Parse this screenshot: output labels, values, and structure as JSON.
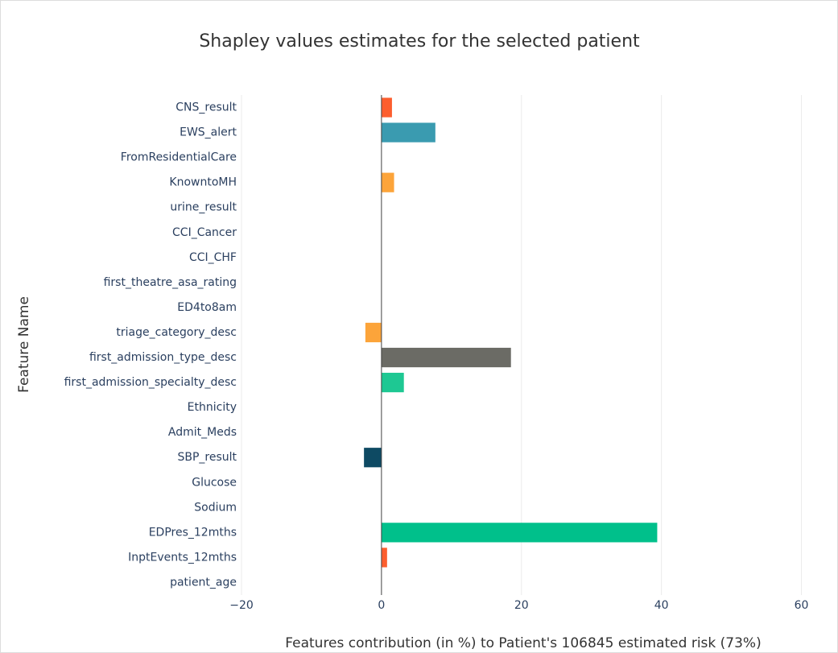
{
  "chart_data": {
    "type": "barh",
    "title": "Shapley values estimates for the selected patient",
    "xlabel": "Features contribution (in %) to Patient's 106845 estimated risk (73%)",
    "ylabel": "Feature Name",
    "categories": [
      "CNS_result",
      "EWS_alert",
      "FromResidentialCare",
      "KnowntoMH",
      "urine_result",
      "CCI_Cancer",
      "CCI_CHF",
      "first_theatre_asa_rating",
      "ED4to8am",
      "triage_category_desc",
      "first_admission_type_desc",
      "first_admission_specialty_desc",
      "Ethnicity",
      "Admit_Meds",
      "SBP_result",
      "Glucose",
      "Sodium",
      "EDPres_12mths",
      "InptEvents_12mths",
      "patient_age"
    ],
    "values": [
      1.5,
      7.7,
      0,
      1.8,
      0,
      0,
      0,
      0,
      0,
      -2.3,
      18.5,
      3.2,
      0,
      0,
      -2.5,
      0,
      0,
      39.4,
      0.8,
      0
    ],
    "colors": [
      "#fc5e2e",
      "#3a9bb0",
      null,
      "#fca43a",
      null,
      null,
      null,
      null,
      null,
      "#fca43a",
      "#6b6b65",
      "#1ec893",
      null,
      null,
      "#0e4a63",
      null,
      null,
      "#00c08b",
      "#fc5e2e",
      null
    ],
    "xlim": [
      -20,
      65
    ],
    "xticks": [
      {
        "value": -20,
        "label": "−20"
      },
      0,
      20,
      40,
      60
    ],
    "grid": true
  }
}
